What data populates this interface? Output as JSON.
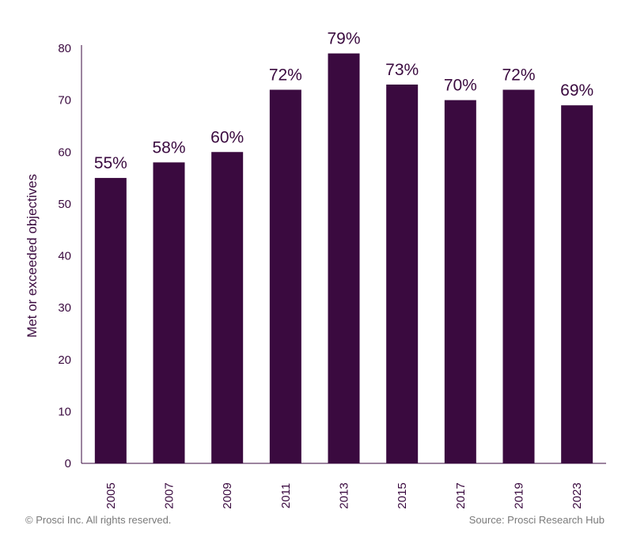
{
  "chart_data": {
    "type": "bar",
    "categories": [
      "2005",
      "2007",
      "2009",
      "2011",
      "2013",
      "2015",
      "2017",
      "2019",
      "2023"
    ],
    "values": [
      55,
      58,
      60,
      72,
      79,
      73,
      70,
      72,
      69
    ],
    "data_labels": [
      "55%",
      "58%",
      "60%",
      "72%",
      "79%",
      "73%",
      "70%",
      "72%",
      "69%"
    ],
    "title": "",
    "xlabel": "",
    "ylabel": "Met or exceeded objectives",
    "ylim": [
      0,
      80
    ],
    "yticks": [
      0,
      10,
      20,
      30,
      40,
      50,
      60,
      70,
      80
    ],
    "grid": false,
    "bar_color": "#3a0a3f",
    "text_color": "#3a0a3f"
  },
  "footer": {
    "copyright": "© Prosci Inc. All rights reserved.",
    "source": "Source: Prosci Research Hub"
  }
}
